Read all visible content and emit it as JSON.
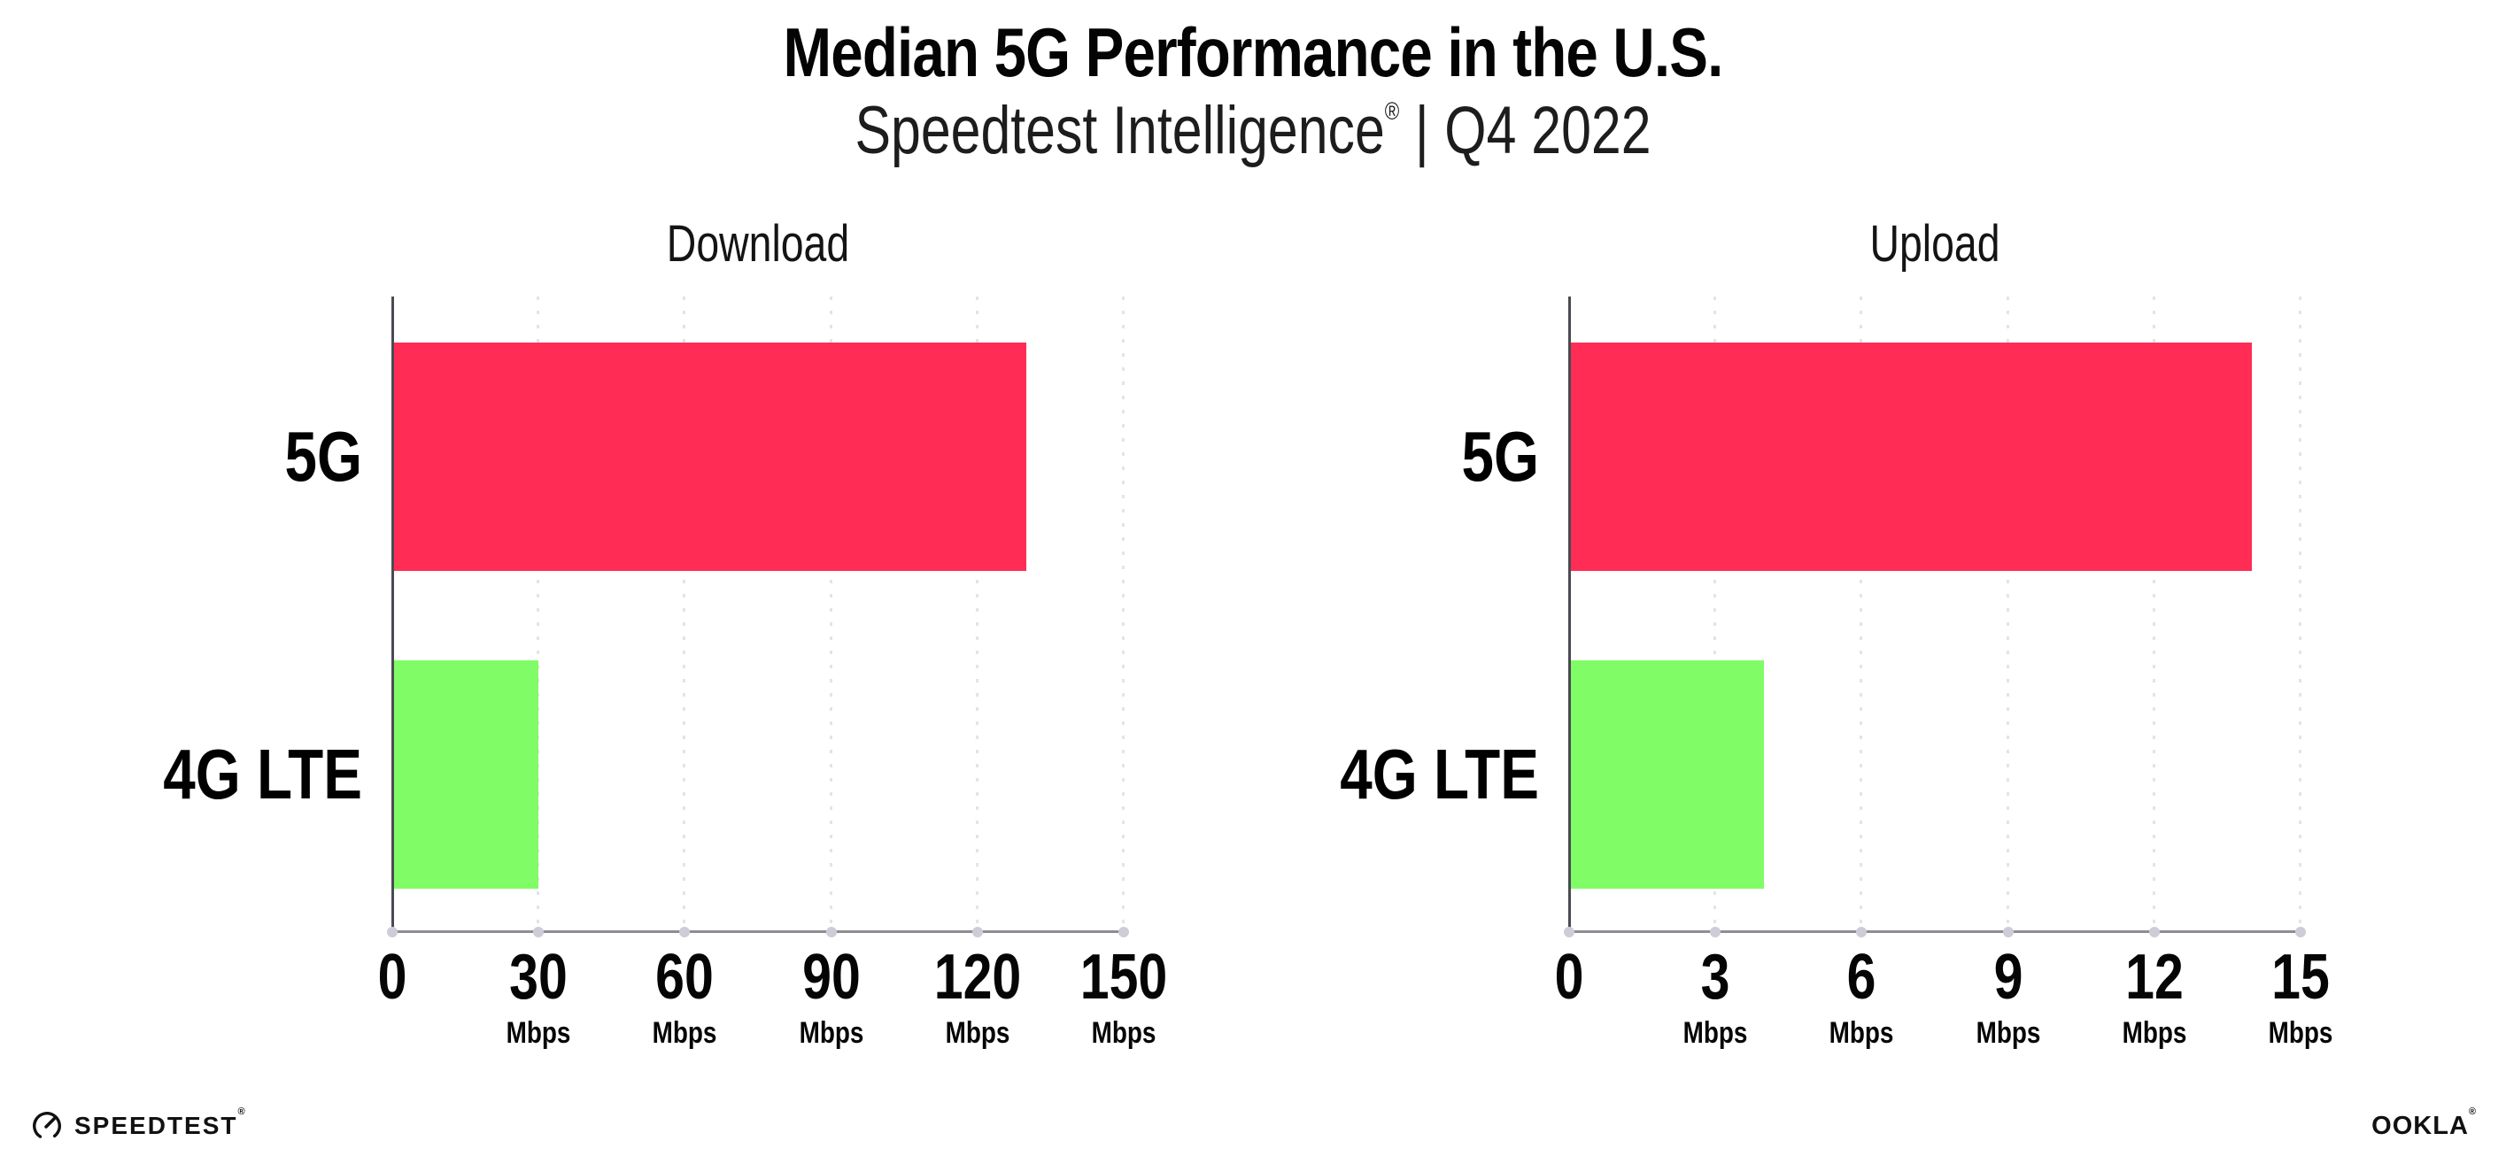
{
  "header": {
    "title": "Median 5G Performance in the U.S.",
    "subtitle_brand": "Speedtest Intelligence",
    "subtitle_mark": "®",
    "subtitle_sep": "|",
    "subtitle_period": "Q4 2022"
  },
  "chart_data": [
    {
      "type": "bar",
      "orientation": "horizontal",
      "title": "Download",
      "categories": [
        "5G",
        "4G LTE"
      ],
      "values": [
        130,
        30
      ],
      "unit": "Mbps",
      "xlim": [
        0,
        150
      ],
      "xticks": [
        0,
        30,
        60,
        90,
        120,
        150
      ],
      "bar_colors": [
        "#FF2D55",
        "#80FC66"
      ],
      "grid": "dotted vertical gridlines at each tick",
      "legend": "none"
    },
    {
      "type": "bar",
      "orientation": "horizontal",
      "title": "Upload",
      "categories": [
        "5G",
        "4G LTE"
      ],
      "values": [
        14,
        4
      ],
      "unit": "Mbps",
      "xlim": [
        0,
        15
      ],
      "xticks": [
        0,
        3,
        6,
        9,
        12,
        15
      ],
      "bar_colors": [
        "#FF2D55",
        "#80FC66"
      ],
      "grid": "dotted vertical gridlines at each tick",
      "legend": "none"
    }
  ],
  "colors": {
    "bar_5g": "#FF2D55",
    "bar_4g_lte": "#80FC66",
    "y_axis": "#4a4a52",
    "x_axis": "#8d8d95",
    "gridline": "#e3e3ec",
    "text": "#050505",
    "background": "#ffffff"
  },
  "footer": {
    "speedtest_label": "SPEEDTEST",
    "speedtest_mark": "®",
    "ookla_label": "OOKLA",
    "ookla_mark": "®"
  }
}
